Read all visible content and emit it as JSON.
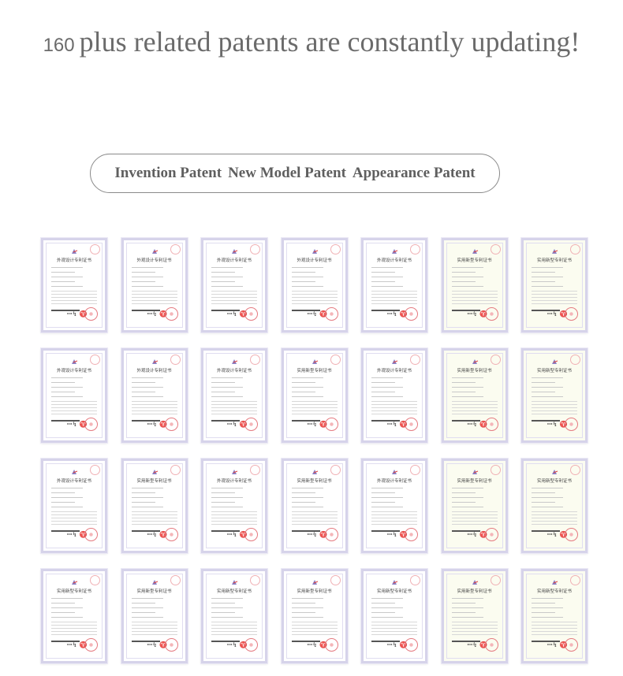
{
  "headline": {
    "number": "160",
    "text": "plus related patents are constantly updating!"
  },
  "categories": [
    "Invention Patent",
    "New Model Patent",
    "Appearance Patent"
  ],
  "colors": {
    "text": "#6b6b6b",
    "frame": "#d6d3ea",
    "seal": "#e57a80"
  },
  "certificate_titles": {
    "appearance": "外观设计专利证书",
    "utility": "实用新型专利证书"
  },
  "certificates": [
    "appearance",
    "appearance",
    "appearance",
    "appearance",
    "appearance",
    "utility",
    "utility",
    "appearance",
    "appearance",
    "appearance",
    "utility",
    "appearance",
    "utility",
    "utility",
    "appearance",
    "utility",
    "appearance",
    "utility",
    "appearance",
    "utility",
    "utility",
    "utility",
    "utility",
    "utility",
    "utility",
    "utility",
    "utility",
    "utility"
  ]
}
